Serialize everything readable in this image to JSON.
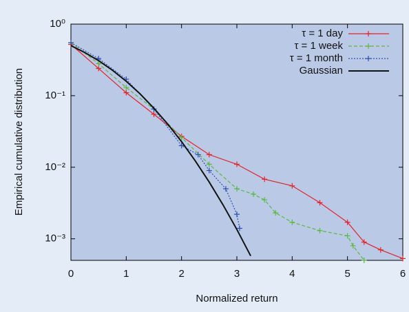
{
  "chart_data": {
    "type": "line",
    "xlabel": "Normalized return",
    "ylabel": "Empirical cumulative distribution",
    "xlim": [
      0,
      6
    ],
    "ylim": [
      0.0005,
      1
    ],
    "yscale": "log",
    "xticks": [
      0,
      1,
      2,
      3,
      4,
      5,
      6
    ],
    "yticks": [
      {
        "value": 1,
        "label": "10⁰"
      },
      {
        "value": 0.1,
        "label": "10⁻¹"
      },
      {
        "value": 0.01,
        "label": "10⁻²"
      },
      {
        "value": 0.001,
        "label": "10⁻³"
      }
    ],
    "legend": "upper right",
    "series": [
      {
        "name": "τ = 1 day",
        "color": "#e8202a",
        "dash": "solid",
        "markers": true,
        "x": [
          0,
          0.5,
          1,
          1.5,
          2,
          2.5,
          3,
          3.5,
          4,
          4.5,
          5,
          5.3,
          5.6,
          6
        ],
        "values": [
          0.52,
          0.24,
          0.11,
          0.055,
          0.027,
          0.015,
          0.011,
          0.0068,
          0.0055,
          0.0032,
          0.0017,
          0.0009,
          0.0007,
          0.00053
        ]
      },
      {
        "name": "τ = 1 week",
        "color": "#5ab840",
        "dash": "dashed",
        "markers": true,
        "x": [
          0,
          0.5,
          1,
          1.5,
          2,
          2.5,
          3,
          3.3,
          3.5,
          3.7,
          4,
          4.5,
          5,
          5.1,
          5.3
        ],
        "values": [
          0.55,
          0.28,
          0.13,
          0.065,
          0.026,
          0.011,
          0.005,
          0.0042,
          0.0035,
          0.0023,
          0.0017,
          0.0013,
          0.0011,
          0.0008,
          0.0005
        ]
      },
      {
        "name": "τ = 1 month",
        "color": "#3050b0",
        "dash": "dotted",
        "markers": true,
        "x": [
          0,
          0.5,
          1,
          1.5,
          2,
          2.3,
          2.5,
          2.8,
          3,
          3.05
        ],
        "values": [
          0.55,
          0.33,
          0.17,
          0.065,
          0.02,
          0.015,
          0.009,
          0.005,
          0.0022,
          0.0014
        ]
      },
      {
        "name": "Gaussian",
        "color": "#111111",
        "dash": "solid",
        "markers": false,
        "x": [
          0,
          0.25,
          0.5,
          0.75,
          1,
          1.25,
          1.5,
          1.75,
          2,
          2.25,
          2.5,
          2.75,
          3,
          3.25
        ],
        "values": [
          0.5,
          0.401,
          0.309,
          0.227,
          0.159,
          0.106,
          0.0668,
          0.0401,
          0.0228,
          0.0122,
          0.00621,
          0.00298,
          0.00135,
          0.000577
        ]
      }
    ]
  }
}
